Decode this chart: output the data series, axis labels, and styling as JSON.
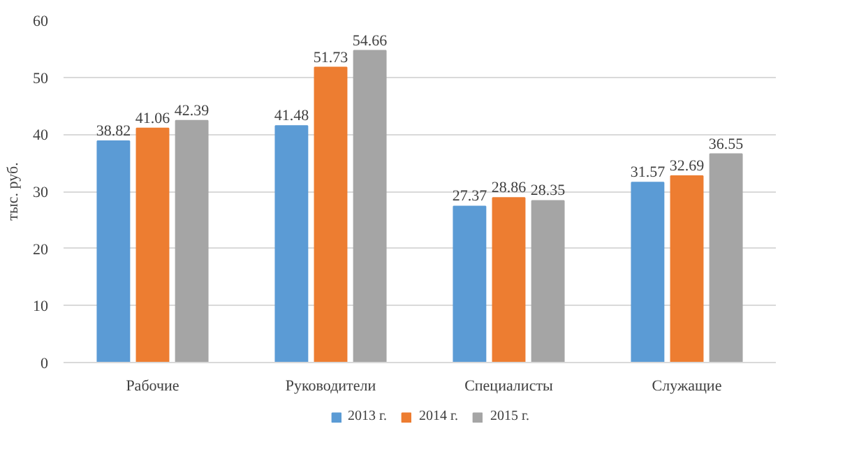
{
  "chart_data": {
    "type": "bar",
    "ylabel": "тыс. руб.",
    "categories": [
      "Рабочие",
      "Руководители",
      "Специалисты",
      "Служащие"
    ],
    "series": [
      {
        "name": "2013 г.",
        "color": "#5b9bd5",
        "values": [
          38.82,
          41.48,
          27.37,
          31.57
        ]
      },
      {
        "name": "2014 г.",
        "color": "#ed7d31",
        "values": [
          41.06,
          51.73,
          28.86,
          32.69
        ]
      },
      {
        "name": "2015 г.",
        "color": "#a5a5a5",
        "values": [
          42.39,
          54.66,
          28.35,
          36.55
        ]
      }
    ],
    "ylim": [
      0,
      60
    ],
    "yticks": [
      0,
      10,
      20,
      30,
      40,
      50,
      60
    ],
    "grid": "y",
    "legend": "bottom",
    "data_labels": true
  }
}
